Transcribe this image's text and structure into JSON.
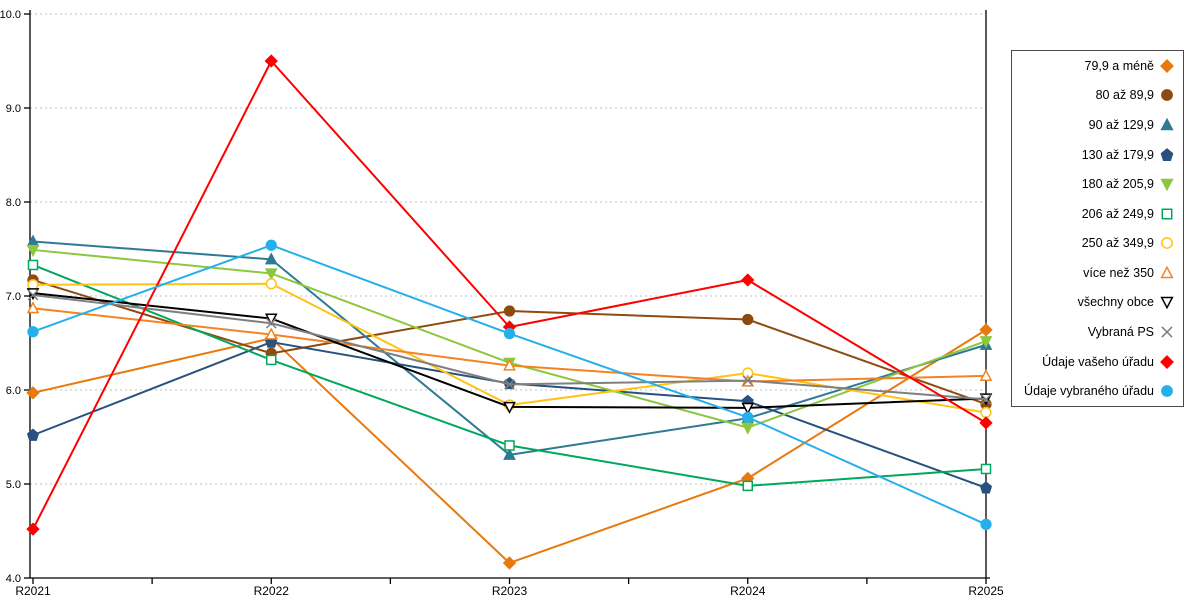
{
  "chart_data": {
    "type": "line",
    "title": "",
    "xlabel": "",
    "ylabel": "",
    "x_categories": [
      "R2021",
      "R2022",
      "R2023",
      "R2024",
      "R2025"
    ],
    "y_ticks": [
      "10.0",
      "9.0",
      "8.0",
      "7.0",
      "6.0",
      "5.0",
      "4.0"
    ],
    "y_tick_values": [
      10.0,
      9.0,
      8.0,
      7.0,
      6.0,
      5.0,
      4.0
    ],
    "ylim": [
      4.0,
      10.0
    ],
    "grid": true,
    "grid_style": "dashed",
    "legend_position": "right",
    "colors": {
      "grid": "#bfbfbf",
      "axis": "#000000"
    },
    "series": [
      {
        "name": "79,9 a méně",
        "color": "#E8790E",
        "marker": "diamond",
        "marker_style": "solid",
        "values": [
          5.97,
          6.55,
          4.16,
          5.06,
          6.64
        ]
      },
      {
        "name": "80 až 89,9",
        "color": "#8E4B0D",
        "marker": "circle",
        "marker_style": "solid",
        "values": [
          7.17,
          6.39,
          6.84,
          6.75,
          5.85
        ]
      },
      {
        "name": "90 až 129,9",
        "color": "#2F7A93",
        "marker": "triangle-up",
        "marker_style": "solid",
        "values": [
          7.58,
          7.39,
          5.31,
          5.7,
          6.48
        ]
      },
      {
        "name": "130 až 179,9",
        "color": "#28517F",
        "marker": "pentagon",
        "marker_style": "solid",
        "values": [
          5.52,
          6.51,
          6.07,
          5.88,
          4.96
        ]
      },
      {
        "name": "180 až 205,9",
        "color": "#8DC63F",
        "marker": "triangle-down",
        "marker_style": "solid",
        "values": [
          7.49,
          7.24,
          6.29,
          5.6,
          6.52
        ]
      },
      {
        "name": "206 až 249,9",
        "color": "#00A75D",
        "marker": "square",
        "marker_style": "open",
        "values": [
          7.33,
          6.32,
          5.41,
          4.98,
          5.16
        ]
      },
      {
        "name": "250 až 349,9",
        "color": "#FFC316",
        "marker": "circle",
        "marker_style": "open",
        "values": [
          7.12,
          7.13,
          5.84,
          6.18,
          5.76
        ]
      },
      {
        "name": "více než 350",
        "color": "#F58220",
        "marker": "triangle-up",
        "marker_style": "open",
        "values": [
          6.87,
          6.59,
          6.26,
          6.09,
          6.15
        ]
      },
      {
        "name": "všechny obce",
        "color": "#000000",
        "marker": "triangle-down",
        "marker_style": "open",
        "values": [
          7.03,
          6.76,
          5.82,
          5.81,
          5.91
        ]
      },
      {
        "name": "Vybraná PS",
        "color": "#7F7F7F",
        "marker": "x",
        "marker_style": "line",
        "values": [
          7.01,
          6.71,
          6.06,
          6.1,
          5.9
        ]
      },
      {
        "name": "Údaje vašeho úřadu",
        "color": "#FE0000",
        "marker": "diamond",
        "marker_style": "solid",
        "values": [
          4.52,
          9.5,
          6.67,
          7.17,
          5.65
        ]
      },
      {
        "name": "Údaje vybraného úřadu",
        "color": "#25B0EC",
        "marker": "circle",
        "marker_style": "solid",
        "values": [
          6.62,
          7.54,
          6.6,
          5.71,
          4.57
        ]
      }
    ]
  }
}
